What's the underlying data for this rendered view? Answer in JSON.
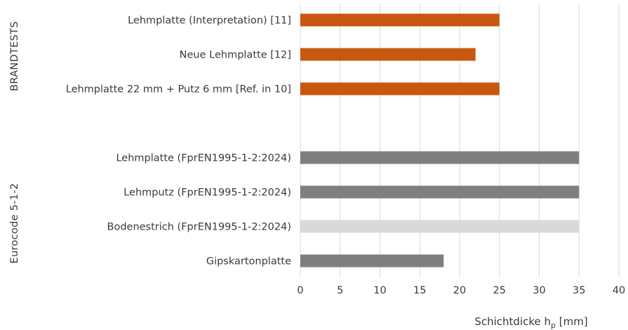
{
  "chart_data": {
    "type": "bar",
    "orientation": "horizontal",
    "groups": [
      {
        "label": "BRANDTESTS",
        "bars": [
          {
            "category": "Lehmplatte (Interpretation) [11]",
            "value": 25,
            "color": "#c8580f"
          },
          {
            "category": "Neue Lehmplatte [12]",
            "value": 22,
            "color": "#c8580f"
          },
          {
            "category": "Lehmplatte 22 mm + Putz 6 mm [Ref. in 10]",
            "value": 25,
            "color": "#c8580f"
          }
        ]
      },
      {
        "label": "Eurocode 5-1-2",
        "bars": [
          {
            "category": "Lehmplatte (FprEN1995-1-2:2024)",
            "value": 35,
            "color": "#7f7f7f"
          },
          {
            "category": "Lehmputz (FprEN1995-1-2:2024)",
            "value": 35,
            "color": "#7f7f7f"
          },
          {
            "category": "Bodenestrich (FprEN1995-1-2:2024)",
            "value": 35,
            "color": "#d9d9d9"
          },
          {
            "category": "Gipskartonplatte",
            "value": 18,
            "color": "#7f7f7f"
          }
        ]
      }
    ],
    "xlabel_main": "Schichtdicke h",
    "xlabel_sub": "p",
    "xlabel_unit": " [mm]",
    "xlim": [
      0,
      40
    ],
    "xticks": [
      "0",
      "5",
      "10",
      "15",
      "20",
      "25",
      "30",
      "35",
      "40"
    ],
    "grid": "vertical",
    "gridColor": "#d9d9d9"
  }
}
